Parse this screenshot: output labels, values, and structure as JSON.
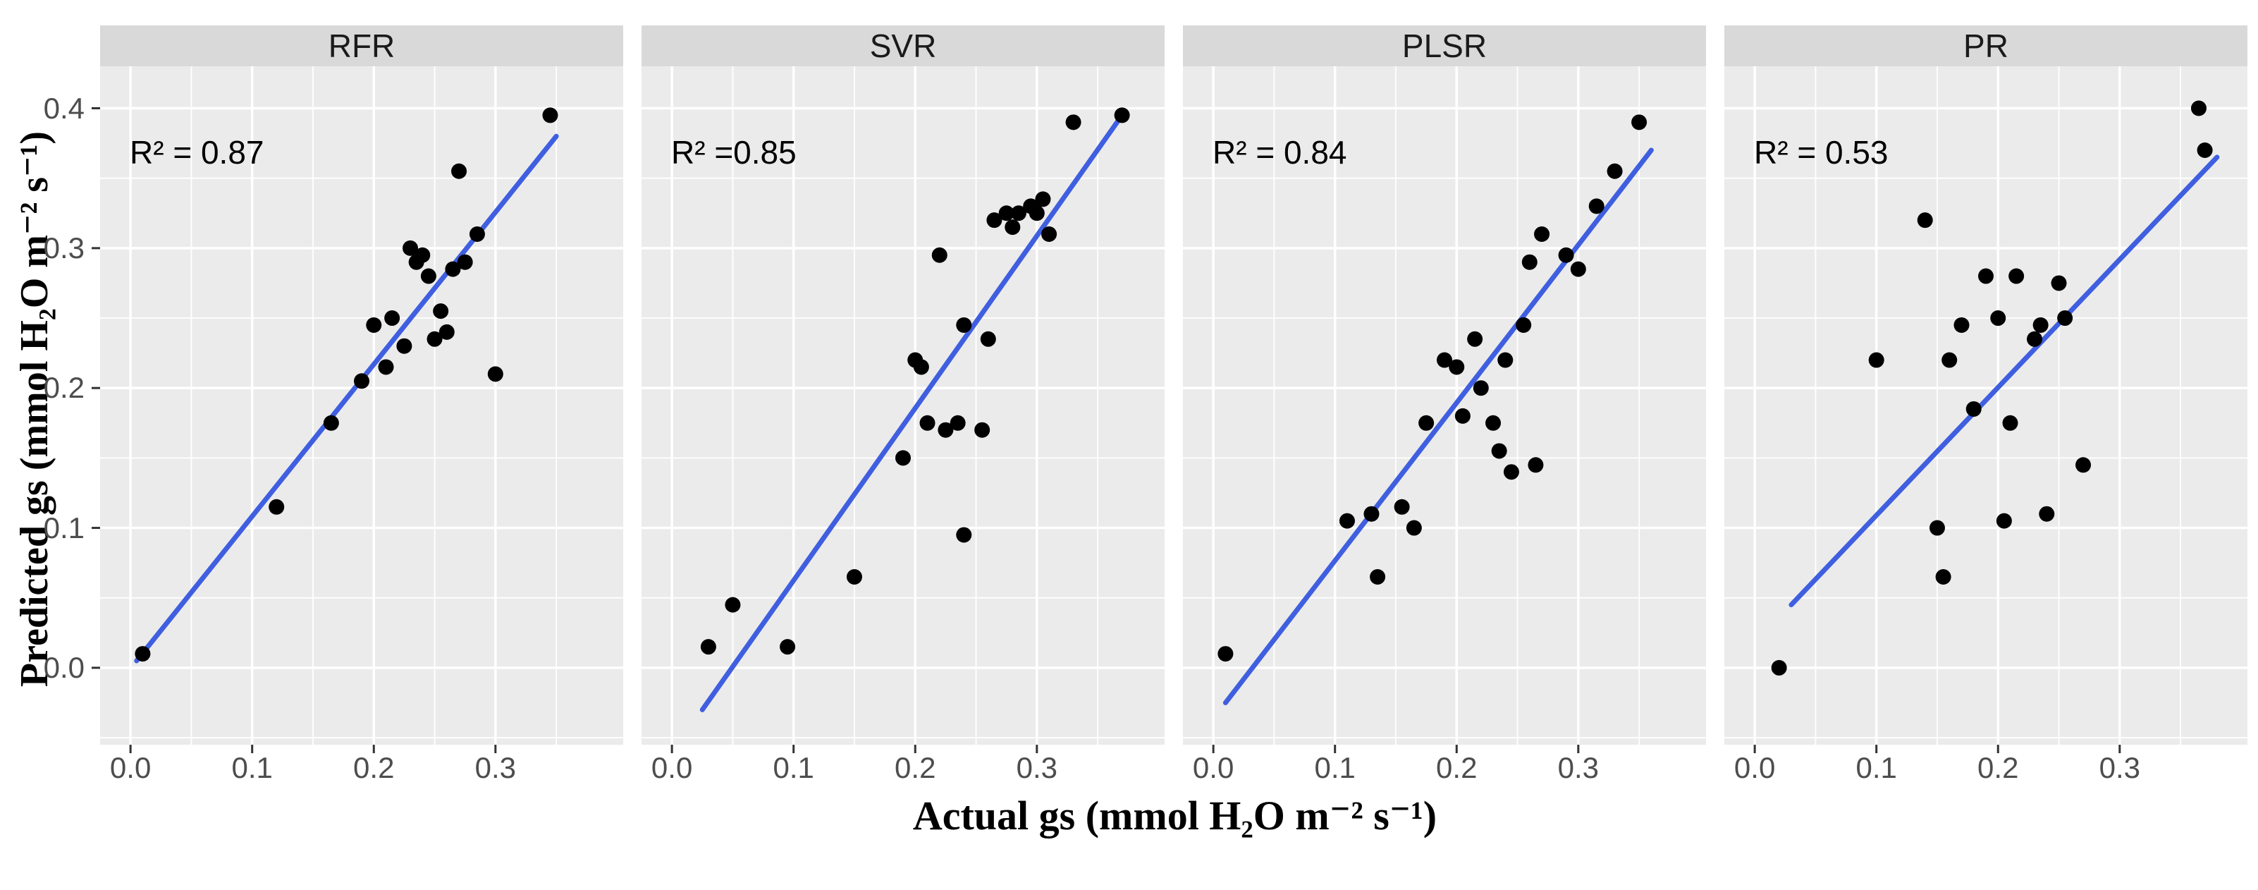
{
  "figure": {
    "background": "#ffffff",
    "panel_bg": "#ebebeb",
    "strip_bg": "#d9d9d9",
    "grid_color": "#ffffff",
    "point_color": "#000000",
    "line_color": "#3f5fe0",
    "tick_color": "#333333",
    "tick_text_color": "#4d4d4d",
    "x_axis_title": "Actual gs (mmol H₂O m⁻² s⁻¹)",
    "y_axis_title": "Predicted gs (mmol H₂O m⁻² s⁻¹)"
  },
  "chart_data": {
    "type": "scatter",
    "title": "",
    "xlabel": "Actual gs (mmol H₂O m⁻² s⁻¹)",
    "ylabel": "Predicted gs (mmol H₂O m⁻² s⁻¹)",
    "x_ticks": [
      0.0,
      0.1,
      0.2,
      0.3
    ],
    "y_ticks": [
      0.0,
      0.1,
      0.2,
      0.3,
      0.4
    ],
    "x_tick_labels": [
      "0.0",
      "0.1",
      "0.2",
      "0.3"
    ],
    "y_tick_labels": [
      "0.0",
      "0.1",
      "0.2",
      "0.3",
      "0.4"
    ],
    "x_minor": [
      0.05,
      0.15,
      0.25,
      0.35
    ],
    "y_minor": [
      -0.05,
      0.05,
      0.15,
      0.25,
      0.35
    ],
    "x_range": [
      -0.025,
      0.405
    ],
    "y_range": [
      -0.055,
      0.43
    ],
    "grid": true,
    "legend": "none",
    "facets": [
      {
        "label": "RFR",
        "r2_label": "R² = 0.87",
        "r2": 0.87,
        "line": [
          0.005,
          0.005,
          0.35,
          0.38
        ],
        "points": [
          [
            0.01,
            0.01
          ],
          [
            0.12,
            0.115
          ],
          [
            0.165,
            0.175
          ],
          [
            0.19,
            0.205
          ],
          [
            0.2,
            0.245
          ],
          [
            0.21,
            0.215
          ],
          [
            0.215,
            0.25
          ],
          [
            0.225,
            0.23
          ],
          [
            0.23,
            0.3
          ],
          [
            0.235,
            0.29
          ],
          [
            0.24,
            0.295
          ],
          [
            0.245,
            0.28
          ],
          [
            0.25,
            0.235
          ],
          [
            0.255,
            0.255
          ],
          [
            0.26,
            0.24
          ],
          [
            0.265,
            0.285
          ],
          [
            0.27,
            0.355
          ],
          [
            0.275,
            0.29
          ],
          [
            0.285,
            0.31
          ],
          [
            0.3,
            0.21
          ],
          [
            0.345,
            0.395
          ]
        ]
      },
      {
        "label": "SVR",
        "r2_label": "R² =0.85",
        "r2": 0.85,
        "line": [
          0.025,
          -0.03,
          0.37,
          0.395
        ],
        "points": [
          [
            0.03,
            0.015
          ],
          [
            0.05,
            0.045
          ],
          [
            0.095,
            0.015
          ],
          [
            0.15,
            0.065
          ],
          [
            0.19,
            0.15
          ],
          [
            0.2,
            0.22
          ],
          [
            0.205,
            0.215
          ],
          [
            0.21,
            0.175
          ],
          [
            0.22,
            0.295
          ],
          [
            0.225,
            0.17
          ],
          [
            0.235,
            0.175
          ],
          [
            0.24,
            0.245
          ],
          [
            0.24,
            0.095
          ],
          [
            0.255,
            0.17
          ],
          [
            0.26,
            0.235
          ],
          [
            0.265,
            0.32
          ],
          [
            0.275,
            0.325
          ],
          [
            0.28,
            0.315
          ],
          [
            0.285,
            0.325
          ],
          [
            0.295,
            0.33
          ],
          [
            0.3,
            0.325
          ],
          [
            0.305,
            0.335
          ],
          [
            0.31,
            0.31
          ],
          [
            0.33,
            0.39
          ],
          [
            0.37,
            0.395
          ]
        ]
      },
      {
        "label": "PLSR",
        "r2_label": "R² = 0.84",
        "r2": 0.84,
        "line": [
          0.01,
          -0.025,
          0.36,
          0.37
        ],
        "points": [
          [
            0.01,
            0.01
          ],
          [
            0.11,
            0.105
          ],
          [
            0.13,
            0.11
          ],
          [
            0.135,
            0.065
          ],
          [
            0.155,
            0.115
          ],
          [
            0.165,
            0.1
          ],
          [
            0.175,
            0.175
          ],
          [
            0.19,
            0.22
          ],
          [
            0.2,
            0.215
          ],
          [
            0.205,
            0.18
          ],
          [
            0.215,
            0.235
          ],
          [
            0.22,
            0.2
          ],
          [
            0.23,
            0.175
          ],
          [
            0.235,
            0.155
          ],
          [
            0.24,
            0.22
          ],
          [
            0.245,
            0.14
          ],
          [
            0.255,
            0.245
          ],
          [
            0.26,
            0.29
          ],
          [
            0.265,
            0.145
          ],
          [
            0.27,
            0.31
          ],
          [
            0.29,
            0.295
          ],
          [
            0.3,
            0.285
          ],
          [
            0.315,
            0.33
          ],
          [
            0.33,
            0.355
          ],
          [
            0.35,
            0.39
          ]
        ]
      },
      {
        "label": "PR",
        "r2_label": "R² = 0.53",
        "r2": 0.53,
        "line": [
          0.03,
          0.045,
          0.38,
          0.365
        ],
        "points": [
          [
            0.02,
            0.0
          ],
          [
            0.1,
            0.22
          ],
          [
            0.14,
            0.32
          ],
          [
            0.15,
            0.1
          ],
          [
            0.155,
            0.065
          ],
          [
            0.16,
            0.22
          ],
          [
            0.17,
            0.245
          ],
          [
            0.18,
            0.185
          ],
          [
            0.19,
            0.28
          ],
          [
            0.2,
            0.25
          ],
          [
            0.205,
            0.105
          ],
          [
            0.21,
            0.175
          ],
          [
            0.215,
            0.28
          ],
          [
            0.23,
            0.235
          ],
          [
            0.235,
            0.245
          ],
          [
            0.24,
            0.11
          ],
          [
            0.25,
            0.275
          ],
          [
            0.255,
            0.25
          ],
          [
            0.27,
            0.145
          ],
          [
            0.365,
            0.4
          ],
          [
            0.37,
            0.37
          ]
        ]
      }
    ]
  }
}
